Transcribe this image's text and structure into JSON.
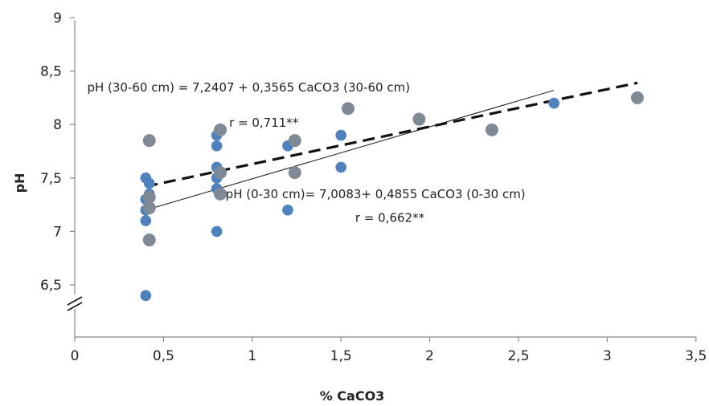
{
  "chart_data": {
    "type": "scatter",
    "xlabel": "% CaCO3",
    "ylabel": "pH",
    "xlim": [
      0,
      3.5
    ],
    "ylim": [
      6.5,
      9
    ],
    "y_axis_break": true,
    "x_ticks": [
      {
        "v": 0,
        "label": "0"
      },
      {
        "v": 0.5,
        "label": "0,5"
      },
      {
        "v": 1,
        "label": "1"
      },
      {
        "v": 1.5,
        "label": "1,5"
      },
      {
        "v": 2,
        "label": "2"
      },
      {
        "v": 2.5,
        "label": "2,5"
      },
      {
        "v": 3,
        "label": "3"
      },
      {
        "v": 3.5,
        "label": "3,5"
      }
    ],
    "y_ticks": [
      {
        "v": 6.5,
        "label": "6,5"
      },
      {
        "v": 7,
        "label": "7"
      },
      {
        "v": 7.5,
        "label": "7,5"
      },
      {
        "v": 8,
        "label": "8"
      },
      {
        "v": 8.5,
        "label": "8,5"
      },
      {
        "v": 9,
        "label": "9"
      }
    ],
    "grid": false,
    "series": [
      {
        "color": "#4f81bd",
        "points": [
          [
            0.4,
            6.4
          ],
          [
            0.4,
            7.1
          ],
          [
            0.4,
            7.2
          ],
          [
            0.4,
            7.3
          ],
          [
            0.4,
            7.5
          ],
          [
            0.42,
            7.45
          ],
          [
            0.42,
            7.35
          ],
          [
            0.8,
            7.0
          ],
          [
            0.8,
            7.4
          ],
          [
            0.8,
            7.5
          ],
          [
            0.8,
            7.6
          ],
          [
            0.8,
            7.8
          ],
          [
            0.8,
            7.9
          ],
          [
            1.2,
            7.2
          ],
          [
            1.2,
            7.8
          ],
          [
            1.5,
            7.6
          ],
          [
            1.5,
            7.9
          ],
          [
            2.7,
            8.2
          ]
        ],
        "trendline": {
          "x": [
            0.4,
            2.7
          ],
          "y": [
            7.2,
            8.32
          ],
          "style": "solid"
        }
      },
      {
        "color": "#808a96",
        "points": [
          [
            0.42,
            6.92
          ],
          [
            0.42,
            7.22
          ],
          [
            0.42,
            7.32
          ],
          [
            0.42,
            7.85
          ],
          [
            0.82,
            7.35
          ],
          [
            0.82,
            7.55
          ],
          [
            0.82,
            7.95
          ],
          [
            1.24,
            7.55
          ],
          [
            1.24,
            7.85
          ],
          [
            1.54,
            8.15
          ],
          [
            1.94,
            8.05
          ],
          [
            2.35,
            7.95
          ],
          [
            3.17,
            8.25
          ]
        ],
        "trendline": {
          "x": [
            0.4,
            3.17
          ],
          "y": [
            7.42,
            8.39
          ],
          "style": "dashed"
        }
      }
    ],
    "annotations": [
      {
        "text": "pH (30-60 cm) = 7,2407 + 0,3565 CaCO3 (30-60 cm)",
        "x": 0.07,
        "y": 8.31
      },
      {
        "text": "r = 0,711**",
        "x": 0.87,
        "y": 7.98
      },
      {
        "text": "pH (0-30 cm)= 7,0083+ 0,4855 CaCO3  (0-30 cm)",
        "x": 0.85,
        "y": 7.31
      },
      {
        "text": "r = 0,662**",
        "x": 1.58,
        "y": 7.09
      }
    ]
  }
}
